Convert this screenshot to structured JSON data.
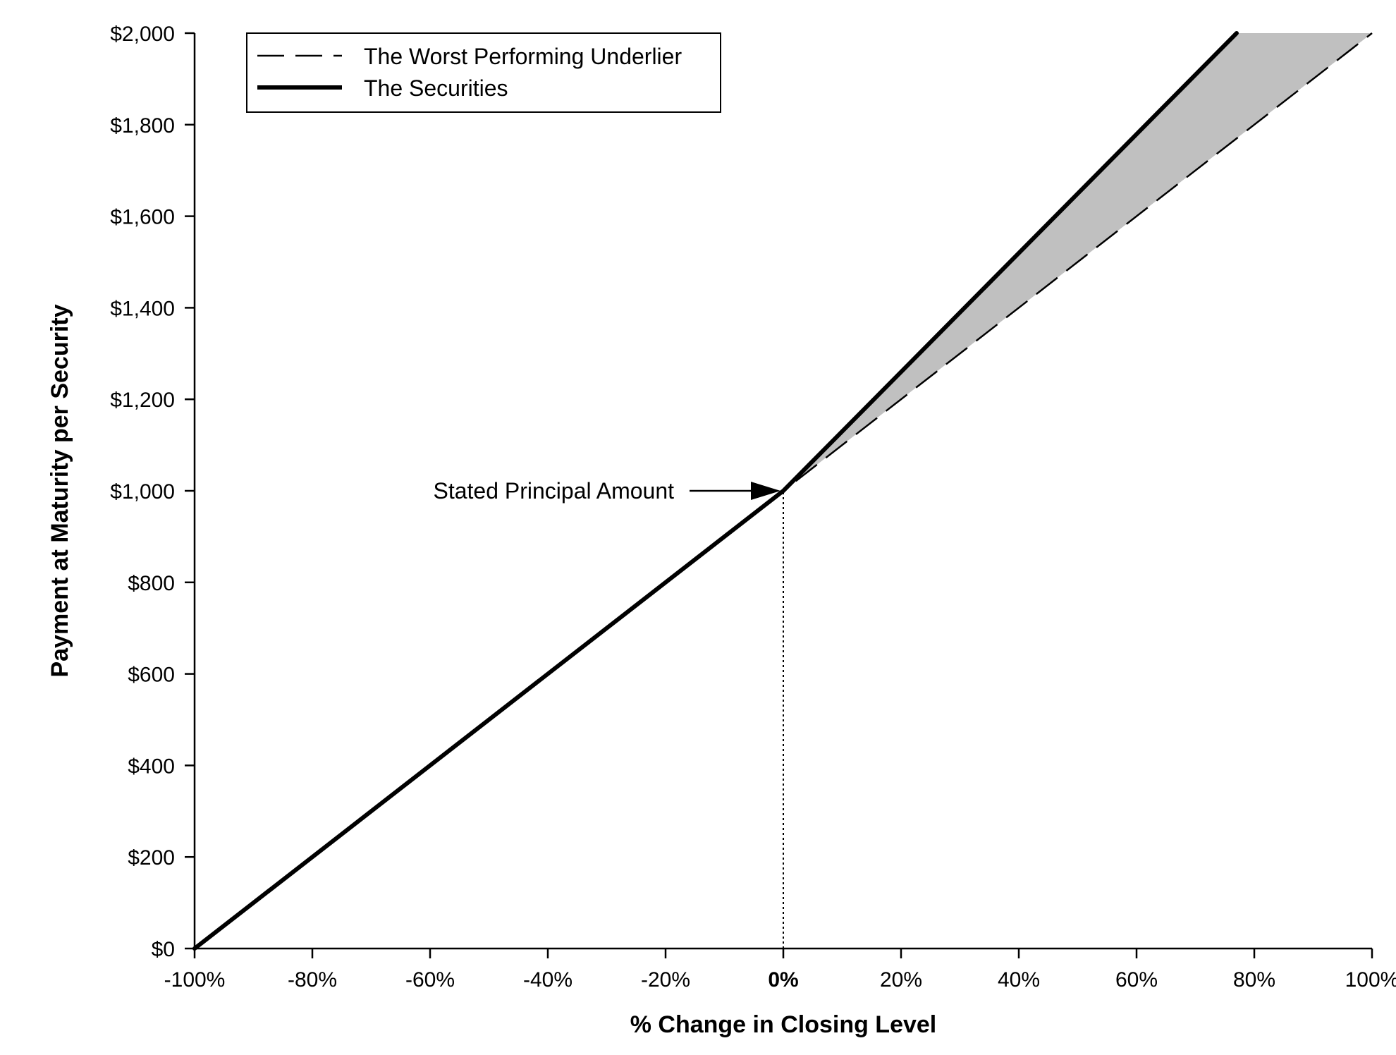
{
  "chart_data": {
    "type": "line",
    "title": "",
    "xlabel": "% Change in Closing Level",
    "ylabel": "Payment at Maturity per Security",
    "xlim": [
      -100,
      100
    ],
    "ylim": [
      0,
      2000
    ],
    "x_ticks": [
      -100,
      -80,
      -60,
      -40,
      -20,
      0,
      20,
      40,
      60,
      80,
      100
    ],
    "x_tick_labels": [
      "-100%",
      "-80%",
      "-60%",
      "-40%",
      "-20%",
      "0%",
      "20%",
      "40%",
      "60%",
      "80%",
      "100%"
    ],
    "y_ticks": [
      0,
      200,
      400,
      600,
      800,
      1000,
      1200,
      1400,
      1600,
      1800,
      2000
    ],
    "y_tick_labels": [
      "$0",
      "$200",
      "$400",
      "$600",
      "$800",
      "$1,000",
      "$1,200",
      "$1,400",
      "$1,600",
      "$1,800",
      "$2,000"
    ],
    "grid": false,
    "legend_position": "top-left",
    "series": [
      {
        "name": "The Worst Performing Underlier",
        "style": "dashed",
        "color": "#000000",
        "x": [
          -100,
          0,
          100
        ],
        "y": [
          0,
          1000,
          2000
        ]
      },
      {
        "name": "The Securities",
        "style": "solid-thick",
        "color": "#000000",
        "x": [
          -100,
          0,
          77
        ],
        "y": [
          0,
          1000,
          2000
        ]
      }
    ],
    "shaded_region": {
      "color": "#c0c0c0",
      "between": [
        "The Securities",
        "The Worst Performing Underlier"
      ],
      "x_range": [
        0,
        100
      ]
    },
    "reference_line": {
      "x": 0,
      "style": "dotted",
      "y_range": [
        0,
        1000
      ]
    },
    "annotations": [
      {
        "text": "Stated Principal Amount",
        "x": 0,
        "y": 1000,
        "arrow": true
      }
    ],
    "bold_tick": "0%"
  }
}
